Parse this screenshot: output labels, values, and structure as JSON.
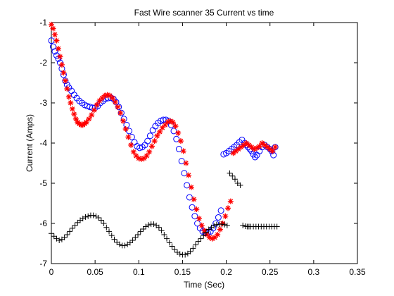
{
  "chart_data": {
    "type": "scatter",
    "title": "Fast Wire scanner 35 Current vs time",
    "xlabel": "Time (Sec)",
    "ylabel": "Current (Amps)",
    "xlim": [
      0,
      0.35
    ],
    "ylim": [
      -7,
      -1
    ],
    "xticks": [
      0,
      0.05,
      0.1,
      0.15,
      0.2,
      0.25,
      0.3,
      0.35
    ],
    "xtick_labels": [
      "0",
      "0.05",
      "0.1",
      "0.15",
      "0.2",
      "0.25",
      "0.3",
      "0.35"
    ],
    "yticks": [
      -7,
      -6,
      -5,
      -4,
      -3,
      -2,
      -1
    ],
    "ytick_labels": [
      "-7",
      "-6",
      "-5",
      "-4",
      "-3",
      "-2",
      "-1"
    ],
    "grid": false,
    "legend": false,
    "series": [
      {
        "marker": "circle",
        "color": "#0000ff",
        "x": [
          0.0,
          0.002,
          0.004,
          0.006,
          0.008,
          0.01,
          0.012,
          0.014,
          0.016,
          0.018,
          0.02,
          0.023,
          0.026,
          0.029,
          0.032,
          0.035,
          0.038,
          0.041,
          0.044,
          0.047,
          0.05,
          0.053,
          0.056,
          0.059,
          0.062,
          0.065,
          0.068,
          0.071,
          0.074,
          0.077,
          0.08,
          0.083,
          0.086,
          0.089,
          0.092,
          0.095,
          0.098,
          0.101,
          0.104,
          0.107,
          0.11,
          0.113,
          0.116,
          0.119,
          0.122,
          0.125,
          0.128,
          0.131,
          0.134,
          0.137,
          0.14,
          0.143,
          0.146,
          0.149,
          0.152,
          0.155,
          0.158,
          0.161,
          0.164,
          0.167,
          0.17,
          0.173,
          0.176,
          0.179,
          0.182,
          0.185,
          0.188,
          0.191,
          0.194,
          0.197,
          0.2,
          0.203,
          0.206,
          0.209,
          0.212,
          0.215,
          0.218,
          0.221,
          0.223,
          0.225,
          0.227,
          0.229,
          0.231,
          0.233,
          0.235,
          0.238,
          0.241,
          0.244,
          0.247,
          0.25,
          0.252,
          0.254,
          0.256
        ],
        "y": [
          -1.45,
          -1.6,
          -1.72,
          -1.82,
          -1.9,
          -2.0,
          -2.15,
          -2.3,
          -2.45,
          -2.55,
          -2.62,
          -2.7,
          -2.8,
          -2.88,
          -2.95,
          -3.0,
          -3.05,
          -3.08,
          -3.1,
          -3.12,
          -3.12,
          -3.08,
          -3.0,
          -2.95,
          -2.9,
          -2.88,
          -2.87,
          -2.9,
          -2.98,
          -3.1,
          -3.25,
          -3.4,
          -3.55,
          -3.7,
          -3.85,
          -3.98,
          -4.08,
          -4.12,
          -4.1,
          -4.05,
          -3.95,
          -3.82,
          -3.68,
          -3.58,
          -3.5,
          -3.45,
          -3.42,
          -3.42,
          -3.45,
          -3.55,
          -3.7,
          -3.9,
          -4.15,
          -4.45,
          -4.75,
          -5.05,
          -5.35,
          -5.6,
          -5.82,
          -6.0,
          -6.12,
          -6.2,
          -6.24,
          -6.24,
          -6.2,
          -6.12,
          -6.0,
          -5.85,
          -5.68,
          -4.28,
          -4.25,
          -4.2,
          -4.15,
          -4.1,
          -4.05,
          -3.98,
          -3.92,
          -4.0,
          -4.05,
          -4.1,
          -4.15,
          -4.2,
          -4.28,
          -4.35,
          -4.3,
          -4.2,
          -4.1,
          -4.05,
          -4.1,
          -4.15,
          -4.2,
          -4.3,
          -4.1
        ]
      },
      {
        "marker": "asterisk",
        "color": "#ff0000",
        "x": [
          0.0,
          0.002,
          0.004,
          0.006,
          0.008,
          0.01,
          0.012,
          0.014,
          0.016,
          0.018,
          0.02,
          0.022,
          0.024,
          0.026,
          0.028,
          0.03,
          0.032,
          0.034,
          0.036,
          0.038,
          0.04,
          0.043,
          0.046,
          0.049,
          0.052,
          0.055,
          0.058,
          0.061,
          0.064,
          0.067,
          0.07,
          0.073,
          0.076,
          0.079,
          0.082,
          0.085,
          0.088,
          0.091,
          0.094,
          0.097,
          0.1,
          0.103,
          0.106,
          0.109,
          0.112,
          0.115,
          0.118,
          0.121,
          0.124,
          0.127,
          0.13,
          0.133,
          0.136,
          0.139,
          0.142,
          0.145,
          0.148,
          0.151,
          0.154,
          0.157,
          0.16,
          0.163,
          0.166,
          0.169,
          0.172,
          0.175,
          0.178,
          0.181,
          0.184,
          0.187,
          0.19,
          0.193,
          0.196,
          0.199,
          0.202,
          0.205,
          0.208,
          0.211,
          0.214,
          0.217,
          0.22,
          0.223,
          0.226,
          0.229,
          0.232,
          0.235,
          0.238,
          0.241,
          0.244,
          0.247,
          0.25,
          0.253,
          0.256
        ],
        "y": [
          -1.05,
          -1.15,
          -1.3,
          -1.45,
          -1.65,
          -1.85,
          -2.05,
          -2.25,
          -2.45,
          -2.65,
          -2.85,
          -3.0,
          -3.15,
          -3.28,
          -3.4,
          -3.48,
          -3.52,
          -3.55,
          -3.55,
          -3.52,
          -3.48,
          -3.4,
          -3.3,
          -3.18,
          -3.05,
          -2.95,
          -2.88,
          -2.82,
          -2.8,
          -2.82,
          -2.88,
          -2.98,
          -3.1,
          -3.25,
          -3.45,
          -3.65,
          -3.85,
          -4.05,
          -4.22,
          -4.32,
          -4.38,
          -4.4,
          -4.38,
          -4.32,
          -4.22,
          -4.08,
          -3.95,
          -3.82,
          -3.72,
          -3.62,
          -3.55,
          -3.48,
          -3.45,
          -3.48,
          -3.58,
          -3.75,
          -3.95,
          -4.2,
          -4.5,
          -4.8,
          -5.1,
          -5.4,
          -5.65,
          -5.88,
          -6.05,
          -6.18,
          -6.28,
          -6.35,
          -6.38,
          -6.35,
          -6.28,
          -6.15,
          -6.0,
          -5.82,
          -5.62,
          -5.45,
          -4.25,
          -4.2,
          -4.15,
          -4.1,
          -4.05,
          -4.0,
          -4.05,
          -4.1,
          -4.15,
          -4.12,
          -4.08,
          -4.0,
          -4.05,
          -4.1,
          -4.15,
          -4.2,
          -4.1
        ]
      },
      {
        "marker": "plus",
        "color": "#000000",
        "x": [
          0.0,
          0.003,
          0.006,
          0.009,
          0.012,
          0.015,
          0.018,
          0.021,
          0.024,
          0.027,
          0.03,
          0.033,
          0.036,
          0.039,
          0.042,
          0.045,
          0.048,
          0.051,
          0.054,
          0.057,
          0.06,
          0.063,
          0.066,
          0.069,
          0.072,
          0.075,
          0.078,
          0.081,
          0.084,
          0.087,
          0.09,
          0.093,
          0.096,
          0.099,
          0.102,
          0.105,
          0.108,
          0.111,
          0.114,
          0.117,
          0.12,
          0.123,
          0.126,
          0.129,
          0.132,
          0.135,
          0.138,
          0.141,
          0.144,
          0.147,
          0.15,
          0.153,
          0.156,
          0.159,
          0.162,
          0.165,
          0.168,
          0.171,
          0.174,
          0.177,
          0.18,
          0.183,
          0.186,
          0.189,
          0.192,
          0.195,
          0.198,
          0.201,
          0.204,
          0.207,
          0.21,
          0.213,
          0.216,
          0.219,
          0.222,
          0.224,
          0.226,
          0.228,
          0.231,
          0.234,
          0.237,
          0.24,
          0.243,
          0.246,
          0.249,
          0.252,
          0.255,
          0.258
        ],
        "y": [
          -6.25,
          -6.32,
          -6.38,
          -6.42,
          -6.4,
          -6.35,
          -6.28,
          -6.2,
          -6.12,
          -6.05,
          -5.98,
          -5.92,
          -5.88,
          -5.84,
          -5.82,
          -5.8,
          -5.8,
          -5.82,
          -5.86,
          -5.92,
          -6.0,
          -6.1,
          -6.2,
          -6.3,
          -6.4,
          -6.47,
          -6.52,
          -6.55,
          -6.55,
          -6.52,
          -6.48,
          -6.42,
          -6.35,
          -6.28,
          -6.2,
          -6.14,
          -6.08,
          -6.04,
          -6.02,
          -6.02,
          -6.05,
          -6.1,
          -6.18,
          -6.28,
          -6.38,
          -6.48,
          -6.57,
          -6.65,
          -6.72,
          -6.76,
          -6.78,
          -6.78,
          -6.75,
          -6.7,
          -6.62,
          -6.53,
          -6.45,
          -6.38,
          -6.3,
          -6.22,
          -6.15,
          -6.1,
          -6.06,
          -6.03,
          -6.02,
          -6.02,
          -6.03,
          -6.05,
          -4.75,
          -4.82,
          -4.9,
          -5.0,
          -5.05,
          -6.05,
          -6.07,
          -6.08,
          -6.08,
          -6.08,
          -6.08,
          -6.08,
          -6.08,
          -6.08,
          -6.08,
          -6.08,
          -6.08,
          -6.08,
          -6.08,
          -6.08
        ]
      }
    ]
  }
}
